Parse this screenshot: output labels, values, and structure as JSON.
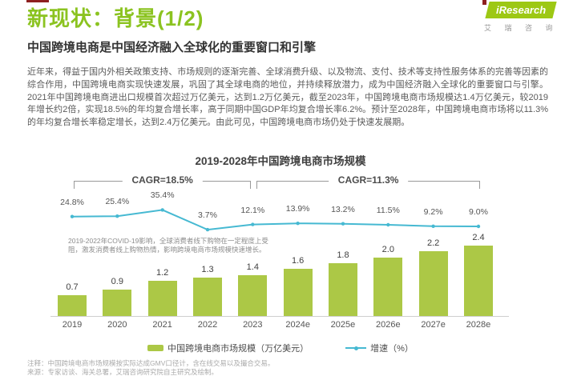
{
  "header": {
    "title": "新现状：背景(1/2)",
    "subtitle": "中国跨境电商是中国经济融入全球化的重要窗口和引擎"
  },
  "logo": {
    "brand": "iResearch",
    "brand_cn": "艾 瑞 咨 询"
  },
  "body": {
    "paragraph": "近年来，得益于国内外相关政策支持、市场规则的逐渐完善、全球消费升级、以及物流、支付、技术等支持性服务体系的完善等因素的综合作用，中国跨境电商实现快速发展，巩固了其全球电商的地位，并持续释放潜力，成为中国经济融入全球化的重要窗口与引擎。2021年中国跨境电商进出口规模首次超过万亿美元，达到1.2万亿美元，截至2023年，中国跨境电商市场规模达1.4万亿美元，较2019年增长约2倍，实现18.5%的年均复合增长率，高于同期中国GDP年均复合增长率6.2%。预计至2028年，中国跨境电商市场将以11.3%的年均复合增长率稳定增长，达到2.4万亿美元。由此可见，中国跨境电商市场仍处于快速发展期。"
  },
  "chart_data": {
    "type": "bar",
    "subtype": "bar+line combo",
    "title": "2019-2028年中国跨境电商市场规模",
    "categories": [
      "2019",
      "2020",
      "2021",
      "2022",
      "2023",
      "2024e",
      "2025e",
      "2026e",
      "2027e",
      "2028e"
    ],
    "series": [
      {
        "name": "中国跨境电商市场规模（万亿美元）",
        "type": "bar",
        "values": [
          0.7,
          0.9,
          1.2,
          1.3,
          1.4,
          1.6,
          1.8,
          2.0,
          2.2,
          2.4
        ],
        "color": "#acc846"
      },
      {
        "name": "增速（%）",
        "type": "line",
        "values": [
          24.8,
          25.4,
          35.4,
          3.7,
          12.1,
          13.9,
          13.2,
          11.5,
          9.2,
          9.0
        ],
        "color": "#46b9d2"
      }
    ],
    "cagr_annotations": [
      {
        "label": "CAGR=18.5%",
        "from": "2019",
        "to": "2023"
      },
      {
        "label": "CAGR=11.3%",
        "from": "2023",
        "to": "2028e"
      }
    ],
    "annotation": "2019-2022年COVID-19影响，全球消费者线下购物在一定程度上受阻，激发消费者线上购物热情，影响跨境电商市场规模快速增长。",
    "legend": [
      "中国跨境电商市场规模（万亿美元）",
      "增速（%）"
    ],
    "xlabel": "",
    "ylabel": "",
    "grid": false,
    "legend_position": "bottom"
  },
  "footnotes": {
    "note": "注释：中国跨境电商市场规模按实际达成GMV口径计，含在线交易以及撮合交易。",
    "source": "来源：专家访谈、海关总署，艾瑞咨询研究院自主研究及绘制。"
  },
  "colors": {
    "accent_green": "#8bc320",
    "bar_green": "#acc846",
    "line_teal": "#46b9d2",
    "logo_green": "#9dc814",
    "accent_red": "#8e2020"
  }
}
